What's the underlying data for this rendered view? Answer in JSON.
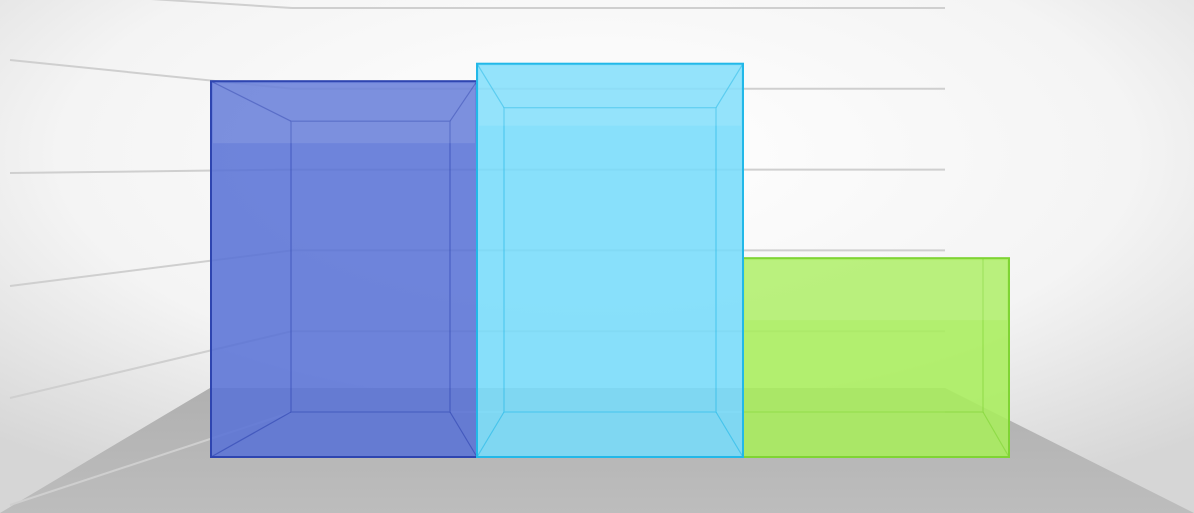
{
  "chart_data": {
    "type": "bar",
    "style": "3d-glass-columns",
    "categories": [
      "",
      "",
      ""
    ],
    "values": [
      86,
      90,
      45.5
    ],
    "ylim": [
      0,
      100
    ],
    "grid": true,
    "legend": "none",
    "title": "",
    "xlabel": "",
    "ylabel": ""
  },
  "colors": {
    "bars": [
      "#5a73d6",
      "#77dcfb",
      "#a9ee5c"
    ],
    "bar_edges": [
      "#2e45b0",
      "#22b8e8",
      "#7fd434"
    ],
    "floor": "#b8b8b8",
    "grid": "#cfcfcf",
    "wall_light": "#ffffff",
    "wall_dark": "#d9d9d9"
  }
}
